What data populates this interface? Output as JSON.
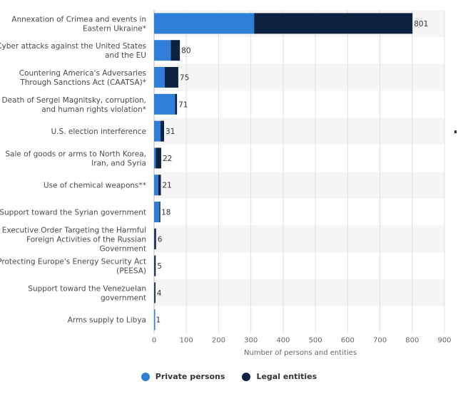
{
  "chart_data": {
    "type": "bar",
    "orientation": "horizontal",
    "stacked": true,
    "categories": [
      [
        "Annexation of Crimea and events in",
        "Eastern Ukraine*"
      ],
      [
        "Cyber attacks against the United States",
        "and the EU"
      ],
      [
        "Countering America's Adversaries",
        "Through Sanctions Act (CAATSA)*"
      ],
      [
        "Death of Sergei Magnitsky, corruption,",
        "and human rights violation*"
      ],
      [
        "U.S. election interference"
      ],
      [
        "Sale of goods or arms to North Korea,",
        "Iran, and Syria"
      ],
      [
        "Use of chemical weapons**"
      ],
      [
        "Support toward the Syrian government"
      ],
      [
        "Executive Order Targeting the Harmful",
        "Foreign Activities of the Russian",
        "Government"
      ],
      [
        "Protecting Europe's Energy Security Act",
        "(PEESA)"
      ],
      [
        "Support toward the Venezuelan",
        "government"
      ],
      [
        "Arms supply to Libya"
      ]
    ],
    "series": [
      {
        "name": "Private persons",
        "color": "#2f7ed8",
        "values": [
          310,
          52,
          33,
          65,
          20,
          5,
          13,
          16,
          1,
          1,
          1,
          1
        ]
      },
      {
        "name": "Legal entities",
        "color": "#0d2240",
        "values": [
          491,
          28,
          42,
          6,
          11,
          17,
          8,
          2,
          5,
          4,
          3,
          0
        ]
      }
    ],
    "totals": [
      "801",
      "80",
      "75",
      "71",
      "31",
      "22",
      "21",
      "18",
      "6",
      "5",
      "4",
      "1"
    ],
    "xlabel": "Number of persons and entities",
    "xlim": [
      0,
      900
    ],
    "xticks": [
      "0",
      "100",
      "200",
      "300",
      "400",
      "500",
      "600",
      "700",
      "800",
      "900"
    ],
    "grid": true,
    "legend_position": "bottom-center"
  }
}
